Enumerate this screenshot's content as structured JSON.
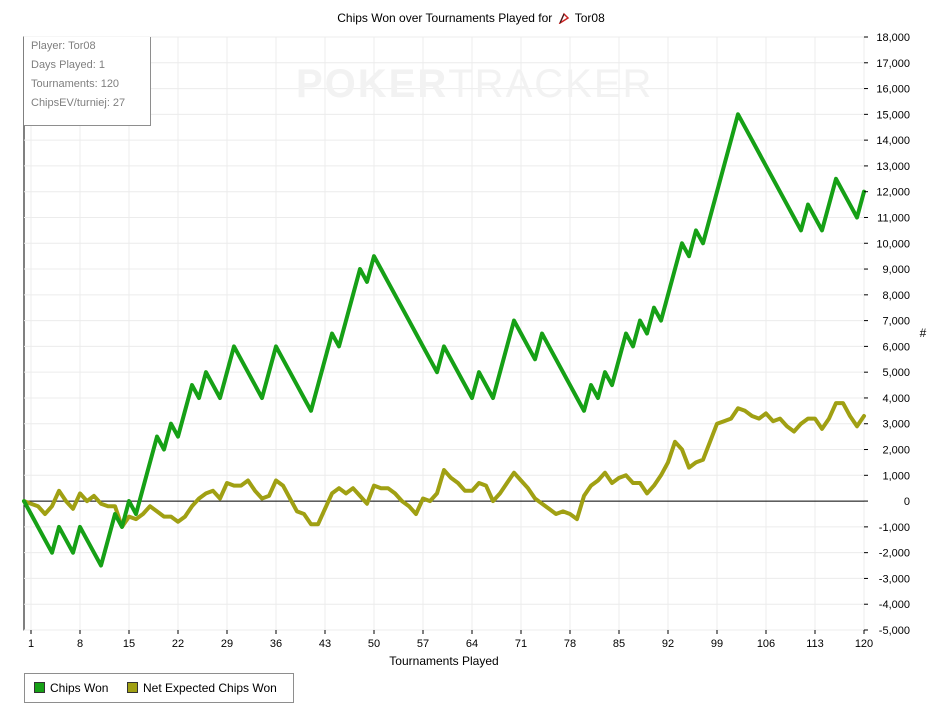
{
  "chart_data": {
    "type": "line",
    "title": "Chips Won over Tournaments Played for",
    "player_name": "Tor08",
    "xlabel": "Tournaments Played",
    "ylabel": "#",
    "x_ticks": [
      1,
      8,
      15,
      22,
      29,
      36,
      43,
      50,
      57,
      64,
      71,
      78,
      85,
      92,
      99,
      106,
      113,
      120
    ],
    "y_ticks": [
      -5000,
      -4000,
      -3000,
      -2000,
      -1000,
      0,
      1000,
      2000,
      3000,
      4000,
      5000,
      6000,
      7000,
      8000,
      9000,
      10000,
      11000,
      12000,
      13000,
      14000,
      15000,
      16000,
      17000,
      18000
    ],
    "y_tick_labels": [
      "-5,000",
      "-4,000",
      "-3,000",
      "-2,000",
      "-1,000",
      "0",
      "1,000",
      "2,000",
      "3,000",
      "4,000",
      "5,000",
      "6,000",
      "7,000",
      "8,000",
      "9,000",
      "10,000",
      "11,000",
      "12,000",
      "13,000",
      "14,000",
      "15,000",
      "16,000",
      "17,000",
      "18,000"
    ],
    "xlim": [
      0,
      120
    ],
    "ylim": [
      -5000,
      18000
    ],
    "y_axis_position": "right",
    "grid": true,
    "legend_position": "bottom-left",
    "x": [
      0,
      1,
      2,
      3,
      4,
      5,
      6,
      7,
      8,
      9,
      10,
      11,
      12,
      13,
      14,
      15,
      16,
      17,
      18,
      19,
      20,
      21,
      22,
      23,
      24,
      25,
      26,
      27,
      28,
      29,
      30,
      31,
      32,
      33,
      34,
      35,
      36,
      37,
      38,
      39,
      40,
      41,
      42,
      43,
      44,
      45,
      46,
      47,
      48,
      49,
      50,
      51,
      52,
      53,
      54,
      55,
      56,
      57,
      58,
      59,
      60,
      61,
      62,
      63,
      64,
      65,
      66,
      67,
      68,
      69,
      70,
      71,
      72,
      73,
      74,
      75,
      76,
      77,
      78,
      79,
      80,
      81,
      82,
      83,
      84,
      85,
      86,
      87,
      88,
      89,
      90,
      91,
      92,
      93,
      94,
      95,
      96,
      97,
      98,
      99,
      100,
      101,
      102,
      103,
      104,
      105,
      106,
      107,
      108,
      109,
      110,
      111,
      112,
      113,
      114,
      115,
      116,
      117,
      118,
      119,
      120
    ],
    "series": [
      {
        "name": "Chips Won",
        "color": "#16a016",
        "values": [
          0,
          -500,
          -1000,
          -1500,
          -2000,
          -1000,
          -1500,
          -2000,
          -1000,
          -1500,
          -2000,
          -2500,
          -1500,
          -500,
          -1000,
          0,
          -500,
          500,
          1500,
          2500,
          2000,
          3000,
          2500,
          3500,
          4500,
          4000,
          5000,
          4500,
          4000,
          5000,
          6000,
          5500,
          5000,
          4500,
          4000,
          5000,
          6000,
          5500,
          5000,
          4500,
          4000,
          3500,
          4500,
          5500,
          6500,
          6000,
          7000,
          8000,
          9000,
          8500,
          9500,
          9000,
          8500,
          8000,
          7500,
          7000,
          6500,
          6000,
          5500,
          5000,
          6000,
          5500,
          5000,
          4500,
          4000,
          5000,
          4500,
          4000,
          5000,
          6000,
          7000,
          6500,
          6000,
          5500,
          6500,
          6000,
          5500,
          5000,
          4500,
          4000,
          3500,
          4500,
          4000,
          5000,
          4500,
          5500,
          6500,
          6000,
          7000,
          6500,
          7500,
          7000,
          8000,
          9000,
          10000,
          9500,
          10500,
          10000,
          11000,
          12000,
          13000,
          14000,
          15000,
          14500,
          14000,
          13500,
          13000,
          12500,
          12000,
          11500,
          11000,
          10500,
          11500,
          11000,
          10500,
          11500,
          12500,
          12000,
          11500,
          11000,
          12000
        ]
      },
      {
        "name": "Net Expected Chips Won",
        "color": "#a0a013",
        "values": [
          0,
          -100,
          -200,
          -500,
          -200,
          400,
          0,
          -300,
          300,
          0,
          200,
          -100,
          -200,
          -200,
          -1000,
          -600,
          -700,
          -500,
          -200,
          -400,
          -600,
          -600,
          -800,
          -600,
          -200,
          100,
          300,
          400,
          100,
          700,
          600,
          600,
          800,
          400,
          100,
          200,
          800,
          600,
          100,
          -400,
          -500,
          -900,
          -900,
          -300,
          300,
          500,
          300,
          500,
          200,
          -100,
          600,
          500,
          500,
          300,
          0,
          -200,
          -500,
          100,
          0,
          300,
          1200,
          900,
          700,
          400,
          400,
          700,
          600,
          0,
          300,
          700,
          1100,
          800,
          500,
          100,
          -100,
          -300,
          -500,
          -400,
          -500,
          -700,
          200,
          600,
          800,
          1100,
          700,
          900,
          1000,
          700,
          700,
          300,
          600,
          1000,
          1500,
          2300,
          2000,
          1300,
          1500,
          1600,
          2300,
          3000,
          3100,
          3200,
          3600,
          3500,
          3300,
          3200,
          3400,
          3100,
          3200,
          2900,
          2700,
          3000,
          3200,
          3200,
          2800,
          3200,
          3800,
          3800,
          3300,
          2900,
          3300
        ]
      }
    ]
  },
  "info": {
    "player": "Player: Tor08",
    "days": "Days Played: 1",
    "tournaments": "Tournaments: 120",
    "chipsev": "ChipsEV/turniej: 27"
  },
  "watermark": {
    "part1": "POKER",
    "part2": "TRACKER"
  },
  "legend": {
    "chips_won": "Chips Won",
    "net_expected": "Net Expected Chips Won"
  },
  "colors": {
    "chips_won": "#16a016",
    "net_expected": "#a0a013",
    "grid": "#ececec",
    "axis": "#000000"
  }
}
